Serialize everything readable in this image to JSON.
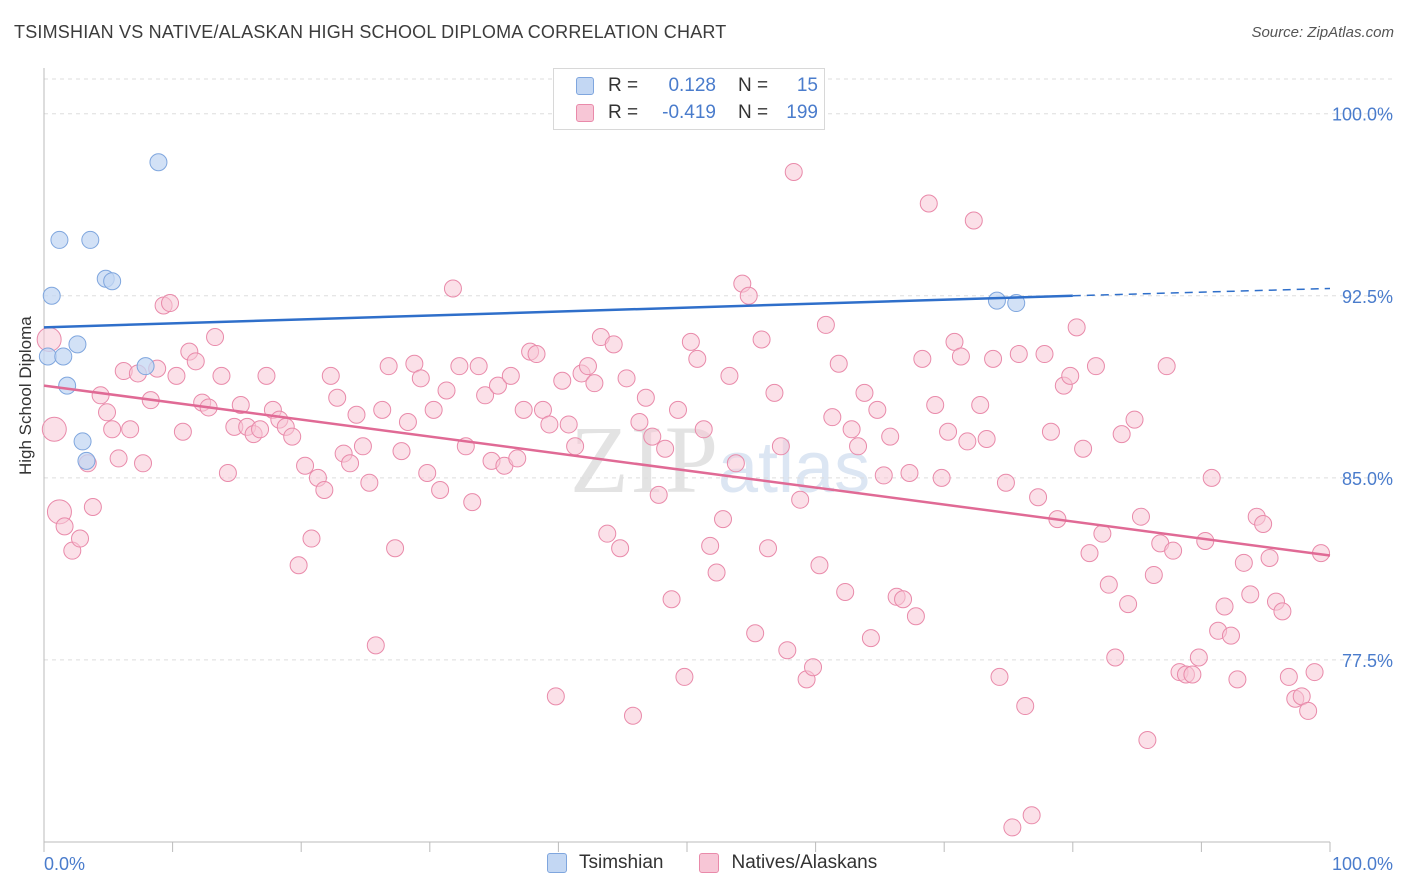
{
  "title": "TSIMSHIAN VS NATIVE/ALASKAN HIGH SCHOOL DIPLOMA CORRELATION CHART",
  "source": "Source: ZipAtlas.com",
  "watermark": {
    "zip": "ZIP",
    "atlas": "atlas"
  },
  "legend": {
    "rows": [
      {
        "r_label": "R =",
        "r_value": "0.128",
        "n_label": "N =",
        "n_value": "15"
      },
      {
        "r_label": "R =",
        "r_value": "-0.419",
        "n_label": "N =",
        "n_value": "199"
      }
    ]
  },
  "bottom_legend": [
    "Tsimshian",
    "Natives/Alaskans"
  ],
  "colors": {
    "blue_fill": "#c3d7f3",
    "blue_stroke": "#7fa6de",
    "blue_line": "#2f6fca",
    "pink_fill": "#f7c6d6",
    "pink_stroke": "#e98aaa",
    "pink_line": "#e06a95",
    "axis_label": "#4a7ccc",
    "grid": "#dddddd"
  },
  "chart_data": {
    "type": "scatter",
    "title": "TSIMSHIAN VS NATIVE/ALASKAN HIGH SCHOOL DIPLOMA CORRELATION CHART",
    "xlabel": "",
    "ylabel": "High School Diploma",
    "xlim": [
      0,
      100
    ],
    "ylim": [
      70,
      101.8
    ],
    "x_tick_labels": [
      "0.0%",
      "100.0%"
    ],
    "y_ticks": [
      77.5,
      85.0,
      92.5,
      100.0
    ],
    "y_tick_labels": [
      "77.5%",
      "85.0%",
      "92.5%",
      "100.0%"
    ],
    "grid": "horizontal dashed",
    "legend_placement": "top-center",
    "series": [
      {
        "name": "Tsimshian",
        "r": 0.128,
        "n": 15,
        "trend": {
          "x0": 0,
          "y0": 91.2,
          "x1": 80,
          "y1": 92.5,
          "dashed_to_x": 100,
          "dashed_to_y": 92.8
        },
        "points": [
          [
            0.3,
            90.0
          ],
          [
            0.6,
            92.5
          ],
          [
            1.2,
            94.8
          ],
          [
            1.5,
            90.0
          ],
          [
            1.8,
            88.8
          ],
          [
            2.6,
            90.5
          ],
          [
            3.0,
            86.5
          ],
          [
            3.3,
            85.7
          ],
          [
            3.6,
            94.8
          ],
          [
            4.8,
            93.2
          ],
          [
            5.3,
            93.1
          ],
          [
            7.9,
            89.6
          ],
          [
            8.9,
            98.0
          ],
          [
            74.1,
            92.3
          ],
          [
            75.6,
            92.2
          ]
        ]
      },
      {
        "name": "Natives/Alaskans",
        "r": -0.419,
        "n": 199,
        "trend": {
          "x0": 0,
          "y0": 88.8,
          "x1": 100,
          "y1": 81.8
        },
        "points": [
          [
            0.4,
            90.7
          ],
          [
            0.8,
            87.0
          ],
          [
            1.2,
            83.6
          ],
          [
            1.6,
            83.0
          ],
          [
            2.2,
            82.0
          ],
          [
            2.8,
            82.5
          ],
          [
            3.4,
            85.6
          ],
          [
            3.8,
            83.8
          ],
          [
            4.4,
            88.4
          ],
          [
            4.9,
            87.7
          ],
          [
            5.3,
            87.0
          ],
          [
            5.8,
            85.8
          ],
          [
            6.2,
            89.4
          ],
          [
            6.7,
            87.0
          ],
          [
            7.3,
            89.3
          ],
          [
            7.7,
            85.6
          ],
          [
            8.3,
            88.2
          ],
          [
            8.8,
            89.5
          ],
          [
            9.3,
            92.1
          ],
          [
            9.8,
            92.2
          ],
          [
            10.3,
            89.2
          ],
          [
            10.8,
            86.9
          ],
          [
            11.3,
            90.2
          ],
          [
            11.8,
            89.8
          ],
          [
            12.3,
            88.1
          ],
          [
            12.8,
            87.9
          ],
          [
            13.3,
            90.8
          ],
          [
            13.8,
            89.2
          ],
          [
            14.3,
            85.2
          ],
          [
            14.8,
            87.1
          ],
          [
            15.3,
            88.0
          ],
          [
            15.8,
            87.1
          ],
          [
            16.3,
            86.8
          ],
          [
            16.8,
            87.0
          ],
          [
            17.3,
            89.2
          ],
          [
            17.8,
            87.8
          ],
          [
            18.3,
            87.4
          ],
          [
            18.8,
            87.1
          ],
          [
            19.3,
            86.7
          ],
          [
            19.8,
            81.4
          ],
          [
            20.3,
            85.5
          ],
          [
            20.8,
            82.5
          ],
          [
            21.3,
            85.0
          ],
          [
            21.8,
            84.5
          ],
          [
            22.3,
            89.2
          ],
          [
            22.8,
            88.3
          ],
          [
            23.3,
            86.0
          ],
          [
            23.8,
            85.6
          ],
          [
            24.3,
            87.6
          ],
          [
            24.8,
            86.3
          ],
          [
            25.3,
            84.8
          ],
          [
            25.8,
            78.1
          ],
          [
            26.3,
            87.8
          ],
          [
            26.8,
            89.6
          ],
          [
            27.3,
            82.1
          ],
          [
            27.8,
            86.1
          ],
          [
            28.3,
            87.3
          ],
          [
            28.8,
            89.7
          ],
          [
            29.3,
            89.1
          ],
          [
            29.8,
            85.2
          ],
          [
            30.3,
            87.8
          ],
          [
            30.8,
            84.5
          ],
          [
            31.3,
            88.6
          ],
          [
            31.8,
            92.8
          ],
          [
            32.3,
            89.6
          ],
          [
            32.8,
            86.3
          ],
          [
            33.3,
            84.0
          ],
          [
            33.8,
            89.6
          ],
          [
            34.3,
            88.4
          ],
          [
            34.8,
            85.7
          ],
          [
            35.3,
            88.8
          ],
          [
            35.8,
            85.5
          ],
          [
            36.3,
            89.2
          ],
          [
            36.8,
            85.8
          ],
          [
            37.3,
            87.8
          ],
          [
            37.8,
            90.2
          ],
          [
            38.3,
            90.1
          ],
          [
            38.8,
            87.8
          ],
          [
            39.3,
            87.2
          ],
          [
            39.8,
            76.0
          ],
          [
            40.3,
            89.0
          ],
          [
            40.8,
            87.2
          ],
          [
            41.3,
            86.3
          ],
          [
            41.8,
            89.3
          ],
          [
            42.3,
            89.6
          ],
          [
            42.8,
            88.9
          ],
          [
            43.3,
            90.8
          ],
          [
            43.8,
            82.7
          ],
          [
            44.3,
            90.5
          ],
          [
            44.8,
            82.1
          ],
          [
            45.3,
            89.1
          ],
          [
            45.8,
            75.2
          ],
          [
            46.3,
            87.3
          ],
          [
            46.8,
            88.3
          ],
          [
            47.3,
            86.7
          ],
          [
            47.8,
            84.3
          ],
          [
            48.3,
            86.2
          ],
          [
            48.8,
            80.0
          ],
          [
            49.3,
            87.8
          ],
          [
            49.8,
            76.8
          ],
          [
            50.3,
            90.6
          ],
          [
            50.8,
            89.9
          ],
          [
            51.3,
            87.0
          ],
          [
            51.8,
            82.2
          ],
          [
            52.3,
            81.1
          ],
          [
            52.8,
            83.3
          ],
          [
            53.3,
            89.2
          ],
          [
            53.8,
            85.6
          ],
          [
            54.3,
            93.0
          ],
          [
            54.8,
            92.5
          ],
          [
            55.3,
            78.6
          ],
          [
            55.8,
            90.7
          ],
          [
            56.3,
            82.1
          ],
          [
            56.8,
            88.5
          ],
          [
            57.3,
            86.3
          ],
          [
            57.8,
            77.9
          ],
          [
            58.3,
            97.6
          ],
          [
            58.8,
            84.1
          ],
          [
            59.3,
            76.7
          ],
          [
            59.8,
            77.2
          ],
          [
            60.3,
            81.4
          ],
          [
            60.8,
            91.3
          ],
          [
            61.3,
            87.5
          ],
          [
            61.8,
            89.7
          ],
          [
            62.3,
            80.3
          ],
          [
            62.8,
            87.0
          ],
          [
            63.3,
            86.3
          ],
          [
            63.8,
            88.5
          ],
          [
            64.3,
            78.4
          ],
          [
            64.8,
            87.8
          ],
          [
            65.3,
            85.1
          ],
          [
            65.8,
            86.7
          ],
          [
            66.3,
            80.1
          ],
          [
            66.8,
            80.0
          ],
          [
            67.3,
            85.2
          ],
          [
            67.8,
            79.3
          ],
          [
            68.3,
            89.9
          ],
          [
            68.8,
            96.3
          ],
          [
            69.3,
            88.0
          ],
          [
            69.8,
            85.0
          ],
          [
            70.3,
            86.9
          ],
          [
            70.8,
            90.6
          ],
          [
            71.3,
            90.0
          ],
          [
            71.8,
            86.5
          ],
          [
            72.3,
            95.6
          ],
          [
            72.8,
            88.0
          ],
          [
            73.3,
            86.6
          ],
          [
            73.8,
            89.9
          ],
          [
            74.3,
            76.8
          ],
          [
            74.8,
            84.8
          ],
          [
            75.3,
            70.6
          ],
          [
            75.8,
            90.1
          ],
          [
            76.3,
            75.6
          ],
          [
            76.8,
            71.1
          ],
          [
            77.3,
            84.2
          ],
          [
            77.8,
            90.1
          ],
          [
            78.3,
            86.9
          ],
          [
            78.8,
            83.3
          ],
          [
            79.3,
            88.8
          ],
          [
            79.8,
            89.2
          ],
          [
            80.3,
            91.2
          ],
          [
            80.8,
            86.2
          ],
          [
            81.3,
            81.9
          ],
          [
            81.8,
            89.6
          ],
          [
            82.3,
            82.7
          ],
          [
            82.8,
            80.6
          ],
          [
            83.3,
            77.6
          ],
          [
            83.8,
            86.8
          ],
          [
            84.3,
            79.8
          ],
          [
            84.8,
            87.4
          ],
          [
            85.3,
            83.4
          ],
          [
            85.8,
            74.2
          ],
          [
            86.3,
            81.0
          ],
          [
            86.8,
            82.3
          ],
          [
            87.3,
            89.6
          ],
          [
            87.8,
            82.0
          ],
          [
            88.3,
            77.0
          ],
          [
            88.8,
            76.9
          ],
          [
            89.3,
            76.9
          ],
          [
            89.8,
            77.6
          ],
          [
            90.3,
            82.4
          ],
          [
            90.8,
            85.0
          ],
          [
            91.3,
            78.7
          ],
          [
            91.8,
            79.7
          ],
          [
            92.3,
            78.5
          ],
          [
            92.8,
            76.7
          ],
          [
            93.3,
            81.5
          ],
          [
            93.8,
            80.2
          ],
          [
            94.3,
            83.4
          ],
          [
            94.8,
            83.1
          ],
          [
            95.3,
            81.7
          ],
          [
            95.8,
            79.9
          ],
          [
            96.3,
            79.5
          ],
          [
            96.8,
            76.8
          ],
          [
            97.3,
            75.9
          ],
          [
            97.8,
            76.0
          ],
          [
            98.3,
            75.4
          ],
          [
            98.8,
            77.0
          ],
          [
            99.3,
            81.9
          ]
        ]
      }
    ]
  }
}
